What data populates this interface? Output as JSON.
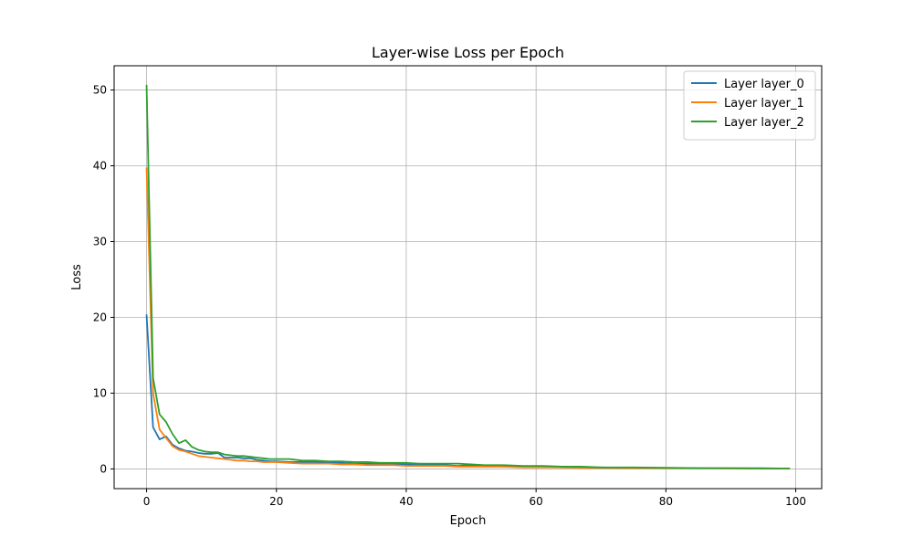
{
  "chart_data": {
    "type": "line",
    "title": "Layer-wise Loss per Epoch",
    "xlabel": "Epoch",
    "ylabel": "Loss",
    "xlim": [
      -5,
      104
    ],
    "ylim": [
      -2.6,
      53.2
    ],
    "xticks": [
      0,
      20,
      40,
      60,
      80,
      100
    ],
    "yticks": [
      0,
      10,
      20,
      30,
      40,
      50
    ],
    "grid": true,
    "legend_position": "top-right",
    "series": [
      {
        "name": "Layer layer_0",
        "color": "#1f77b4",
        "x": [
          0,
          1,
          2,
          3,
          4,
          5,
          6,
          7,
          8,
          9,
          10,
          11,
          12,
          13,
          14,
          15,
          16,
          17,
          18,
          19,
          20,
          22,
          24,
          26,
          28,
          30,
          32,
          34,
          36,
          38,
          40,
          42,
          44,
          46,
          48,
          50,
          52,
          55,
          58,
          61,
          64,
          67,
          70,
          75,
          80,
          85,
          90,
          95,
          99
        ],
        "y": [
          20.3,
          5.5,
          3.9,
          4.3,
          3.2,
          2.7,
          2.4,
          2.3,
          2.1,
          2.0,
          2.0,
          2.1,
          1.5,
          1.5,
          1.5,
          1.4,
          1.4,
          1.2,
          1.1,
          1.0,
          1.0,
          0.9,
          0.9,
          0.9,
          0.8,
          0.8,
          0.7,
          0.7,
          0.6,
          0.6,
          0.6,
          0.5,
          0.5,
          0.5,
          0.4,
          0.5,
          0.4,
          0.3,
          0.3,
          0.3,
          0.2,
          0.2,
          0.2,
          0.1,
          0.1,
          0.1,
          0.1,
          0.1,
          0.05
        ]
      },
      {
        "name": "Layer layer_1",
        "color": "#ff7f0e",
        "x": [
          0,
          1,
          2,
          3,
          4,
          5,
          6,
          7,
          8,
          9,
          10,
          11,
          12,
          13,
          14,
          15,
          16,
          17,
          18,
          19,
          20,
          22,
          24,
          26,
          28,
          30,
          32,
          34,
          36,
          38,
          40,
          42,
          44,
          46,
          48,
          50,
          52,
          55,
          58,
          61,
          64,
          67,
          70,
          75,
          80,
          85,
          90,
          95,
          99
        ],
        "y": [
          39.7,
          10.0,
          5.2,
          4.1,
          3.0,
          2.5,
          2.3,
          2.0,
          1.7,
          1.6,
          1.5,
          1.4,
          1.3,
          1.2,
          1.1,
          1.1,
          1.0,
          1.0,
          0.9,
          0.9,
          0.9,
          0.8,
          0.7,
          0.7,
          0.7,
          0.6,
          0.6,
          0.5,
          0.5,
          0.5,
          0.4,
          0.4,
          0.4,
          0.4,
          0.3,
          0.3,
          0.3,
          0.3,
          0.2,
          0.2,
          0.2,
          0.15,
          0.15,
          0.1,
          0.1,
          0.1,
          0.05,
          0.05,
          0.05
        ]
      },
      {
        "name": "Layer layer_2",
        "color": "#2ca02c",
        "x": [
          0,
          1,
          2,
          3,
          4,
          5,
          6,
          7,
          8,
          9,
          10,
          11,
          12,
          13,
          14,
          15,
          16,
          17,
          18,
          19,
          20,
          22,
          24,
          26,
          28,
          30,
          32,
          34,
          36,
          38,
          40,
          42,
          44,
          46,
          48,
          50,
          52,
          55,
          58,
          61,
          64,
          67,
          70,
          75,
          80,
          85,
          90,
          95,
          99
        ],
        "y": [
          50.6,
          12.0,
          7.2,
          6.2,
          4.6,
          3.4,
          3.8,
          2.9,
          2.5,
          2.3,
          2.2,
          2.2,
          1.9,
          1.8,
          1.7,
          1.7,
          1.6,
          1.5,
          1.4,
          1.3,
          1.3,
          1.3,
          1.1,
          1.1,
          1.0,
          1.0,
          0.9,
          0.9,
          0.8,
          0.8,
          0.8,
          0.7,
          0.7,
          0.7,
          0.7,
          0.6,
          0.5,
          0.5,
          0.4,
          0.4,
          0.3,
          0.3,
          0.2,
          0.2,
          0.15,
          0.1,
          0.1,
          0.05,
          0.05
        ]
      }
    ]
  }
}
